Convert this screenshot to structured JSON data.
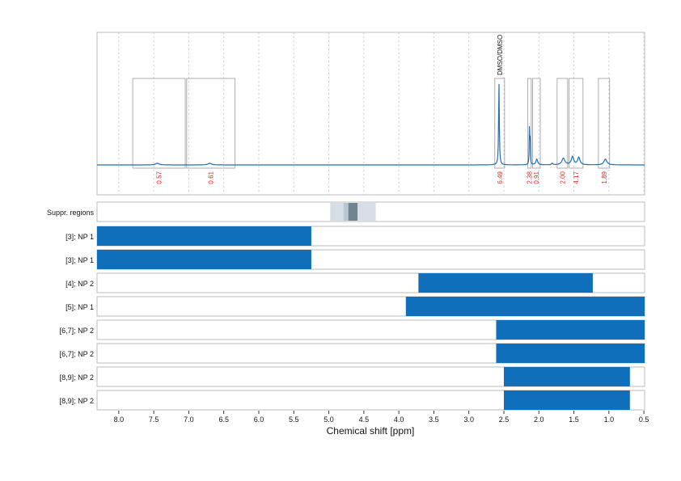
{
  "chart_data": {
    "type": "line",
    "xlabel": "Chemical shift [ppm]",
    "xlim": [
      8.31,
      0.49
    ],
    "x_reversed": true,
    "xticks": [
      8.0,
      7.5,
      7.0,
      6.5,
      6.0,
      5.5,
      5.0,
      4.5,
      4.0,
      3.5,
      3.0,
      2.5,
      2.0,
      1.5,
      1.0,
      0.5
    ],
    "xtick_labels": [
      "8.0",
      "7.5",
      "7.0",
      "6.5",
      "6.0",
      "5.5",
      "5.0",
      "4.5",
      "4.0",
      "3.5",
      "3.0",
      "2.5",
      "2.0",
      "1.5",
      "1.0",
      "0.5"
    ],
    "grid": "vertical dotted",
    "color": "#1f6fb4",
    "peaks": [
      {
        "ppm": 7.45,
        "height": 0.02,
        "width": 0.03
      },
      {
        "ppm": 6.7,
        "height": 0.02,
        "width": 0.03
      },
      {
        "ppm": 2.57,
        "height": 1.0,
        "width": 0.006
      },
      {
        "ppm": 2.135,
        "height": 0.46,
        "width": 0.004
      },
      {
        "ppm": 2.125,
        "height": 0.3,
        "width": 0.004
      },
      {
        "ppm": 2.03,
        "height": 0.07,
        "width": 0.015
      },
      {
        "ppm": 1.65,
        "height": 0.08,
        "width": 0.025
      },
      {
        "ppm": 1.52,
        "height": 0.1,
        "width": 0.02
      },
      {
        "ppm": 1.43,
        "height": 0.09,
        "width": 0.02
      },
      {
        "ppm": 1.05,
        "height": 0.07,
        "width": 0.025
      },
      {
        "ppm": 1.81,
        "height": 0.02,
        "width": 0.01
      }
    ],
    "integrals": [
      {
        "from": 7.8,
        "to": 7.05,
        "value": "0.57"
      },
      {
        "from": 7.03,
        "to": 6.34,
        "value": "0.61"
      },
      {
        "from": 2.63,
        "to": 2.49,
        "value": "6.49",
        "annotation": "DMSO/DMSO"
      },
      {
        "from": 2.16,
        "to": 2.11,
        "value": "2.38"
      },
      {
        "from": 2.09,
        "to": 1.98,
        "value": "0.91"
      },
      {
        "from": 1.74,
        "to": 1.59,
        "value": "2.00"
      },
      {
        "from": 1.57,
        "to": 1.37,
        "value": "4.17"
      },
      {
        "from": 1.15,
        "to": 0.99,
        "value": "1.89"
      }
    ],
    "suppression": {
      "label": "Suppr. regions",
      "regions": [
        {
          "from": 4.98,
          "to": 4.33,
          "color": "#d5dee6"
        },
        {
          "from": 4.79,
          "to": 4.6,
          "color": "#b7c6d0"
        },
        {
          "from": 4.72,
          "to": 4.59,
          "color": "#6e8491"
        }
      ]
    },
    "ranges": [
      {
        "label": "[3]; NP 1",
        "from": 8.31,
        "to": 5.25
      },
      {
        "label": "[3]; NP 1",
        "from": 8.31,
        "to": 5.25
      },
      {
        "label": "[4]; NP 2",
        "from": 3.72,
        "to": 1.23
      },
      {
        "label": "[5]; NP 1",
        "from": 3.9,
        "to": 0.49
      },
      {
        "label": "[6,7]; NP 2",
        "from": 2.61,
        "to": 0.49
      },
      {
        "label": "[6,7]; NP 2",
        "from": 2.61,
        "to": 0.49
      },
      {
        "label": "[8,9]; NP 2",
        "from": 2.5,
        "to": 0.7
      },
      {
        "label": "[8,9]; NP 2",
        "from": 2.5,
        "to": 0.7
      }
    ],
    "bar_color": "#0f6fba",
    "integral_label_color": "#e8262b"
  }
}
